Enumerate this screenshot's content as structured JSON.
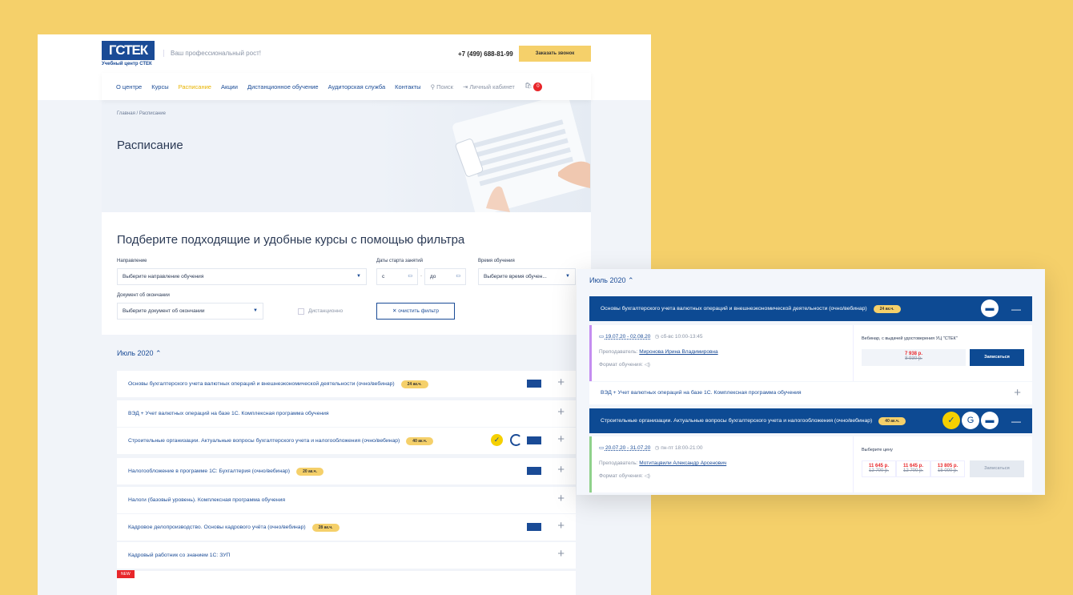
{
  "header": {
    "logo_text": "ГСТЕК",
    "logo_sub": "Учебный центр СТЕК",
    "slogan": "Ваш профессиональный рост!",
    "phone": "+7 (499) 688-81-99",
    "call_button": "Заказать звонок"
  },
  "nav": {
    "items": [
      "О центре",
      "Курсы",
      "Расписание",
      "Акции",
      "Дистанционное обучение",
      "Аудиторская служба",
      "Контакты"
    ],
    "active": "Расписание",
    "search": "Поиск",
    "account": "Личный кабинет",
    "cart_count": "0"
  },
  "hero": {
    "breadcrumb": "Главная / Расписание",
    "title": "Расписание"
  },
  "filter": {
    "title": "Подберите подходящие и удобные курсы с помощью фильтра",
    "direction_label": "Направление",
    "direction_value": "Выберите направление обучения",
    "dates_label": "Даты старта занятий",
    "date_from": "с",
    "date_to": "до",
    "time_label": "Время обучения",
    "time_value": "Выберите время обучен...",
    "doc_label": "Документ об окончании",
    "doc_value": "Выберите документ об окончании",
    "remote_label": "Дистанционно",
    "clear_button": "✕ очистить фильтр"
  },
  "schedule": {
    "month": "Июль 2020",
    "new_badge": "NEW",
    "courses": [
      {
        "title": "Основы бухгалтерского учета валютных операций и внешнеэкономической деятельности (очно/вебинар)",
        "hours": "24 ак.ч."
      },
      {
        "title": "ВЭД + Учет валютных операций на базе 1С. Комплексная программа обучения",
        "hours": ""
      },
      {
        "title": "Строительные организации. Актуальные вопросы бухгалтерского учета и налогообложения (очно/вебинар)",
        "hours": "40 ак.ч."
      },
      {
        "title": "Налогообложение в программе 1С: Бухгалтерия (очно/вебинар)",
        "hours": "20 ак.ч."
      },
      {
        "title": "Налоги (базовый уровень). Комплексная программа обучения",
        "hours": ""
      },
      {
        "title": "Кадровое делопроизводство. Основы кадрового учёта (очно/вебинар)",
        "hours": "28 ак.ч."
      },
      {
        "title": "Кадровый работник со знанием 1С: ЗУП",
        "hours": ""
      }
    ]
  },
  "popup": {
    "month": "Июль 2020",
    "course1": {
      "title": "Основы бухгалтерского учета валютных операций и внешнеэкономической деятельности (очно/вебинар)",
      "hours": "24 ак.ч.",
      "dates": "19.07.20 - 02.08.20",
      "time": "сб-вс 10:00-13:45",
      "teacher_label": "Преподаватель:",
      "teacher": "Миронова Ирина Владимировна",
      "format_label": "Формат обучения:",
      "option": "Вебинар, с выдачей удостоверения УЦ \"СТЕК\"",
      "price": "7 938 р.",
      "old_price": "8 930 р.",
      "button": "Записаться"
    },
    "course2": {
      "title": "ВЭД + Учет валютных операций на базе 1С. Комплексная программа обучения"
    },
    "course3": {
      "title": "Строительные организации. Актуальные вопросы бухгалтерского учета и налогообложения (очно/вебинар)",
      "hours": "40 ак.ч.",
      "dates": "20.07.20 - 31.07.20",
      "time": "пн-пт 18:00-21:00",
      "teacher_label": "Преподаватель:",
      "teacher": "Мотитацвили Александр Арсенович",
      "format_label": "Формат обучения:",
      "choose": "Выберите цену",
      "prices": [
        {
          "price": "11 645 р.",
          "old": "12 700 р."
        },
        {
          "price": "11 645 р.",
          "old": "12 700 р."
        },
        {
          "price": "13 805 р.",
          "old": "15 000 р."
        }
      ],
      "button": "Записаться"
    }
  },
  "colors": {
    "brand_blue": "#0d4a93",
    "accent_yellow": "#f5d06a",
    "price_red": "#e8262a"
  }
}
